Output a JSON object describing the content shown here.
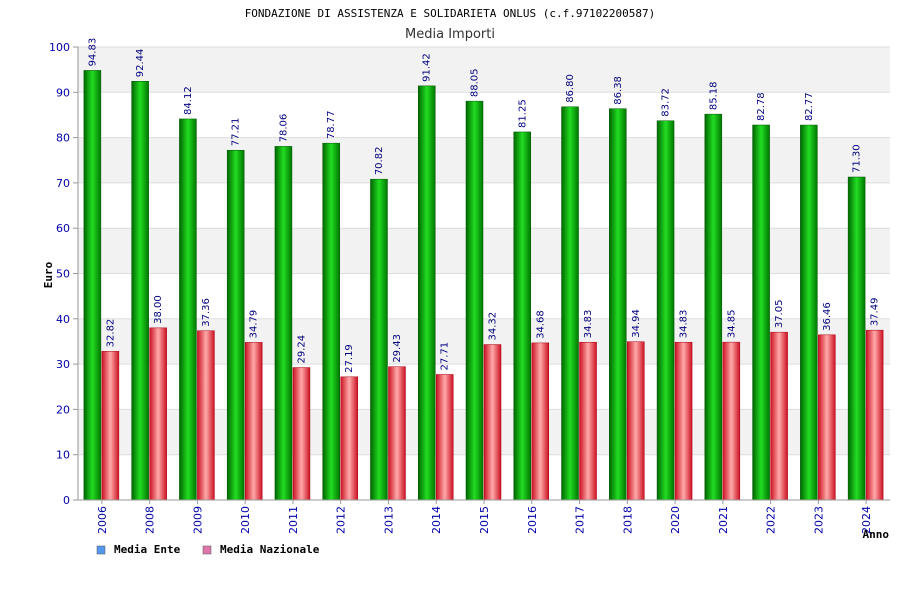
{
  "chart_data": {
    "type": "bar",
    "title": "FONDAZIONE DI ASSISTENZA E SOLIDARIETA ONLUS (c.f.97102200587)",
    "subtitle": "Media Importi",
    "xlabel": "Anno",
    "ylabel": "Euro",
    "ylim": [
      0,
      100
    ],
    "yticks": [
      0,
      10,
      20,
      30,
      40,
      50,
      60,
      70,
      80,
      90,
      100
    ],
    "categories": [
      "2006",
      "2008",
      "2009",
      "2010",
      "2011",
      "2012",
      "2013",
      "2014",
      "2015",
      "2016",
      "2017",
      "2018",
      "2020",
      "2021",
      "2022",
      "2023",
      "2024"
    ],
    "series": [
      {
        "name": "Media Ente",
        "values": [
          94.83,
          92.44,
          84.12,
          77.21,
          78.06,
          78.77,
          70.82,
          91.42,
          88.05,
          81.25,
          86.8,
          86.38,
          83.72,
          85.18,
          82.78,
          82.77,
          71.3
        ],
        "labels": [
          "94.83",
          "92.44",
          "84.12",
          "77.21",
          "78.06",
          "78.77",
          "70.82",
          "91.42",
          "88.05",
          "81.25",
          "86.80",
          "86.38",
          "83.72",
          "85.18",
          "82.78",
          "82.77",
          "71.30"
        ],
        "color": "#00bb00",
        "legend_color": "#5599ee"
      },
      {
        "name": "Media Nazionale",
        "values": [
          32.82,
          38.0,
          37.36,
          34.79,
          29.24,
          27.19,
          29.43,
          27.71,
          34.32,
          34.68,
          34.83,
          34.94,
          34.83,
          34.85,
          37.05,
          36.46,
          37.49
        ],
        "labels": [
          "32.82",
          "38.00",
          "37.36",
          "34.79",
          "29.24",
          "27.19",
          "29.43",
          "27.71",
          "34.32",
          "34.68",
          "34.83",
          "34.94",
          "34.83",
          "34.85",
          "37.05",
          "36.46",
          "37.49"
        ],
        "color": "#ee2233",
        "legend_color": "#dd77aa"
      }
    ],
    "grid": true,
    "legend": "bottom-left"
  }
}
